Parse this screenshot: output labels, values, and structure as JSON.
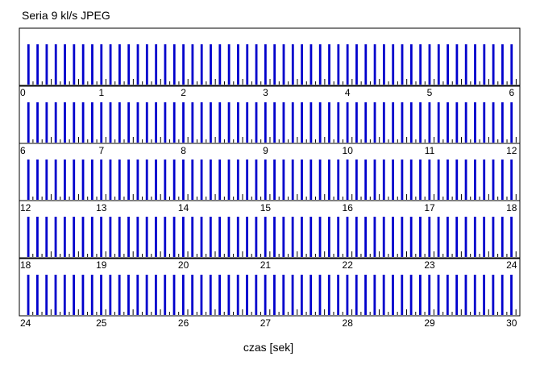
{
  "chart_data": {
    "type": "bar",
    "title": "Seria 9 kl/s JPEG",
    "xlabel": "czas [sek]",
    "ylabel": "",
    "rows": [
      {
        "xlim": [
          0,
          6.1
        ]
      },
      {
        "xlim": [
          6,
          12.1
        ]
      },
      {
        "xlim": [
          12,
          18.1
        ]
      },
      {
        "xlim": [
          18,
          24.1
        ]
      },
      {
        "xlim": [
          24,
          30.1
        ]
      }
    ],
    "ticks": [
      [
        0,
        1,
        2,
        3,
        4,
        5,
        6
      ],
      [
        6,
        7,
        8,
        9,
        10,
        11,
        12
      ],
      [
        12,
        13,
        14,
        15,
        16,
        17,
        18
      ],
      [
        18,
        19,
        20,
        21,
        22,
        23,
        24
      ],
      [
        24,
        25,
        26,
        27,
        28,
        29,
        30
      ]
    ],
    "frame_rate_per_s": 9,
    "frame_interval_s": 0.1111,
    "series": [
      {
        "values_relative": 1.0,
        "color": "#0000cc"
      }
    ],
    "secondary_marks": {
      "height_relative": [
        0.12,
        0.22
      ],
      "color": "#000000"
    },
    "grid": false,
    "legend": "none"
  }
}
